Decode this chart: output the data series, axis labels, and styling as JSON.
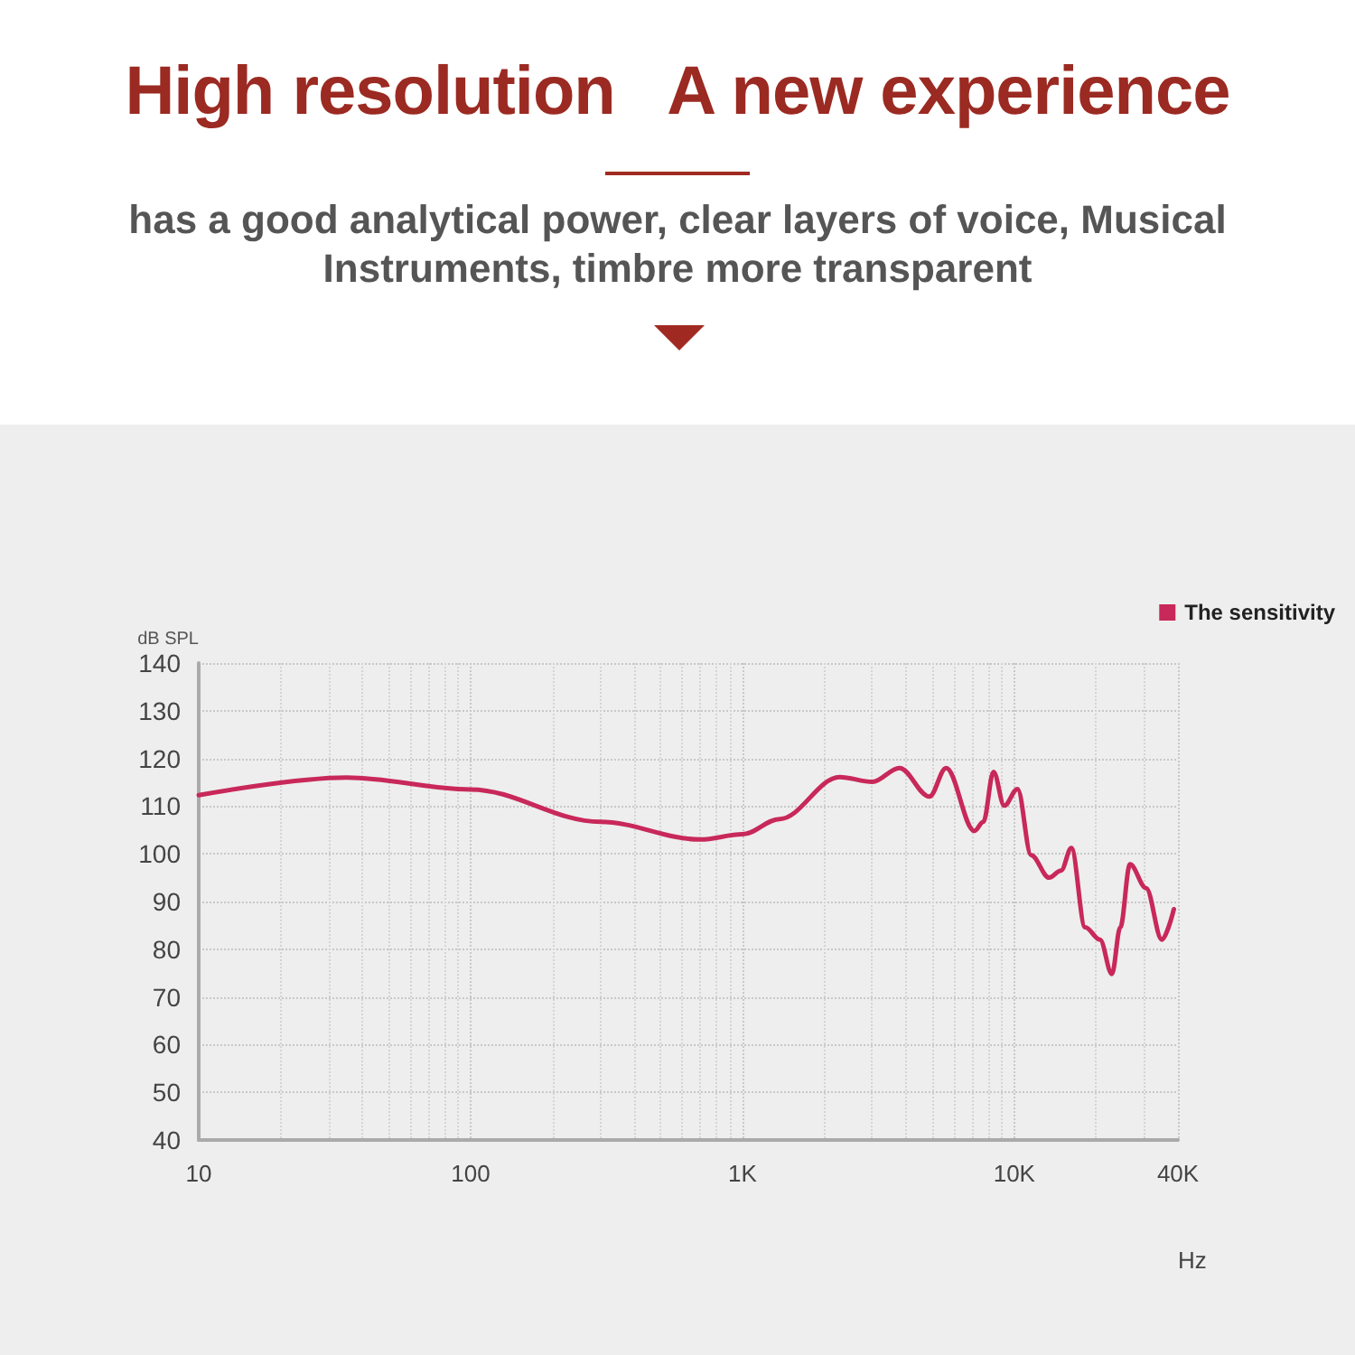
{
  "chart_data": {
    "type": "line",
    "title": "High resolution   A new experience",
    "subtitle": "has a good analytical power, clear layers of voice, Musical Instruments, timbre more transparent",
    "xlabel": "Hz",
    "ylabel": "dB SPL",
    "log": "x",
    "xlim": [
      10,
      40000
    ],
    "xticks": [
      10,
      100,
      {
        "value": 1000,
        "label": "1K"
      },
      {
        "value": 10000,
        "label": "10K"
      },
      {
        "value": 40000,
        "label": "40K"
      }
    ],
    "ylim": [
      40,
      140
    ],
    "yticks": [
      40,
      50,
      60,
      70,
      80,
      90,
      100,
      110,
      120,
      130,
      140
    ],
    "grid": true,
    "legend": "top right",
    "marker": "none",
    "line_style": "solid",
    "series": [
      {
        "name": "The sensitivity",
        "color": "#c8285a",
        "x": [
          10,
          35,
          100,
          300,
          700,
          1000,
          1371,
          2277,
          3010,
          3782,
          4874,
          5615,
          7131,
          7695,
          8390,
          9186,
          10280,
          11540,
          13430,
          14860,
          16220,
          18230,
          20670,
          22860,
          24550,
          26650,
          30550,
          34910,
          38650
        ],
        "values": [
          112.3,
          116,
          113.5,
          106.7,
          103,
          104.1,
          107.3,
          116.1,
          115.1,
          118,
          112,
          118,
          104.8,
          106.7,
          117.2,
          110.1,
          113.6,
          99.7,
          95,
          96.5,
          101.2,
          84.6,
          82,
          74.8,
          84.6,
          97.8,
          92.8,
          82,
          88.4
        ]
      }
    ]
  }
}
